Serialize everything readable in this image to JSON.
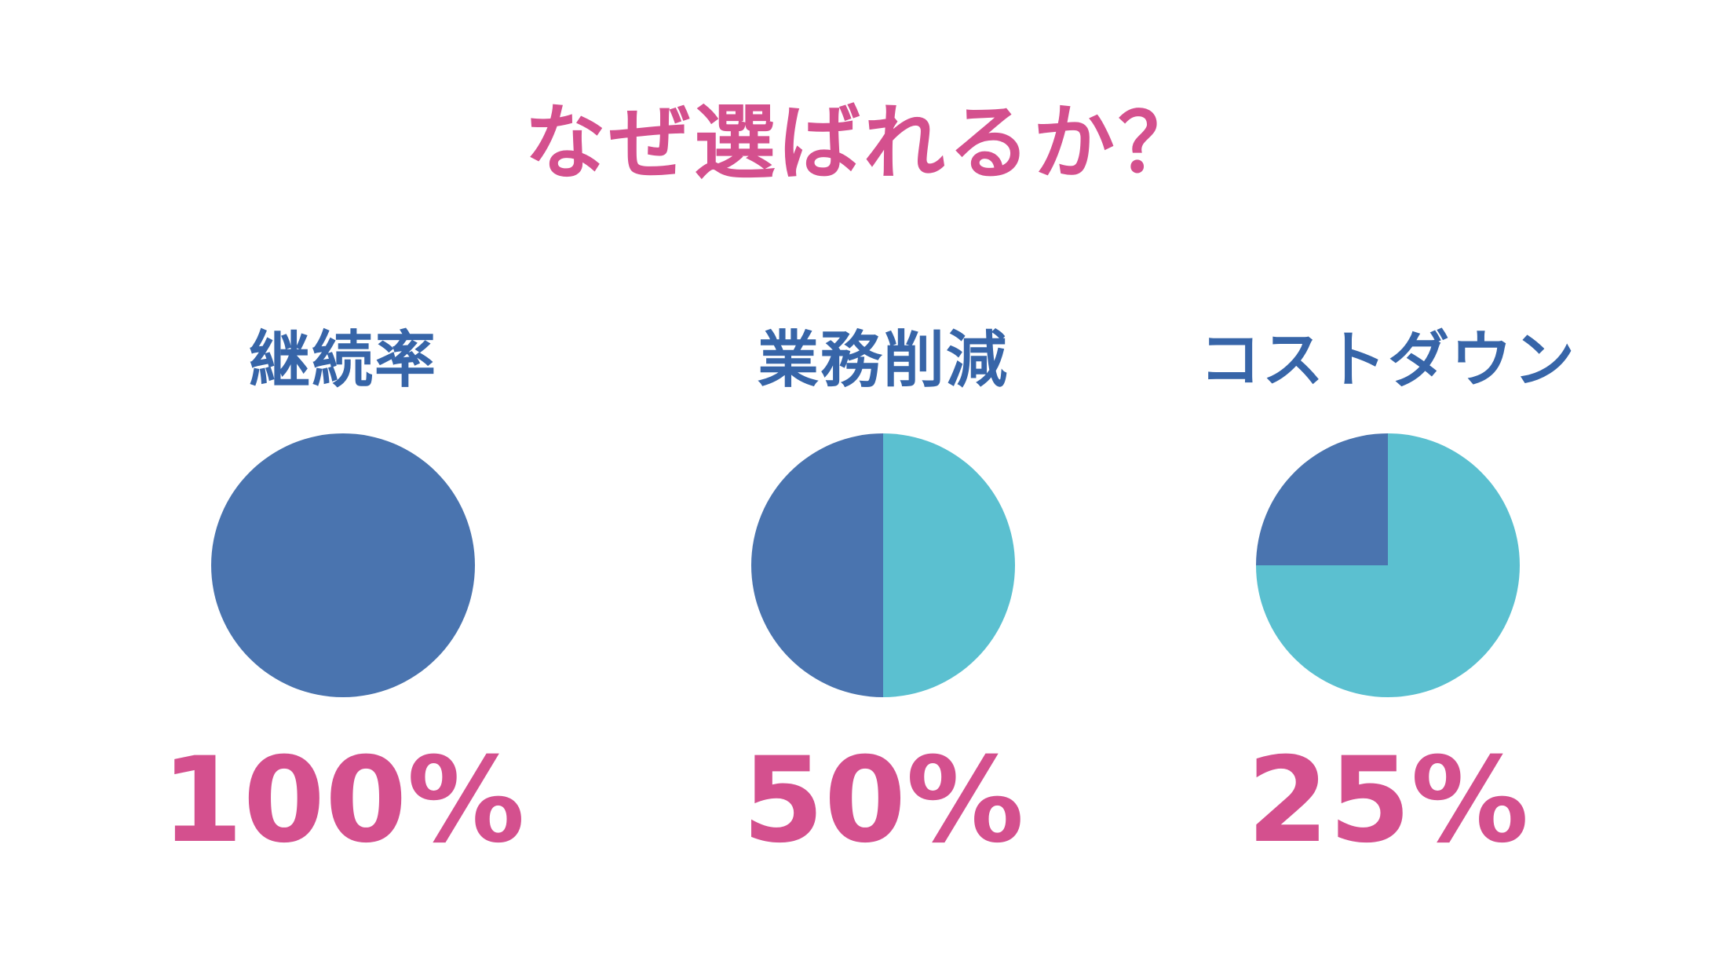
{
  "title": "なぜ選ばれるか？",
  "colors": {
    "title": "#d4508e",
    "label": "#3765a8",
    "value": "#d4508e",
    "primary_slice": "#4a74af",
    "secondary_slice": "#5bc0d0"
  },
  "chart_data": [
    {
      "type": "pie",
      "title": "継続率",
      "value_label": "100%",
      "slices": [
        {
          "value": 100,
          "color": "#4a74af"
        },
        {
          "value": 0,
          "color": "#5bc0d0"
        }
      ]
    },
    {
      "type": "pie",
      "title": "業務削減",
      "value_label": "50%",
      "slices": [
        {
          "value": 50,
          "color": "#4a74af"
        },
        {
          "value": 50,
          "color": "#5bc0d0"
        }
      ]
    },
    {
      "type": "pie",
      "title": "コストダウン",
      "value_label": "25%",
      "slices": [
        {
          "value": 25,
          "color": "#4a74af"
        },
        {
          "value": 75,
          "color": "#5bc0d0"
        }
      ]
    }
  ]
}
